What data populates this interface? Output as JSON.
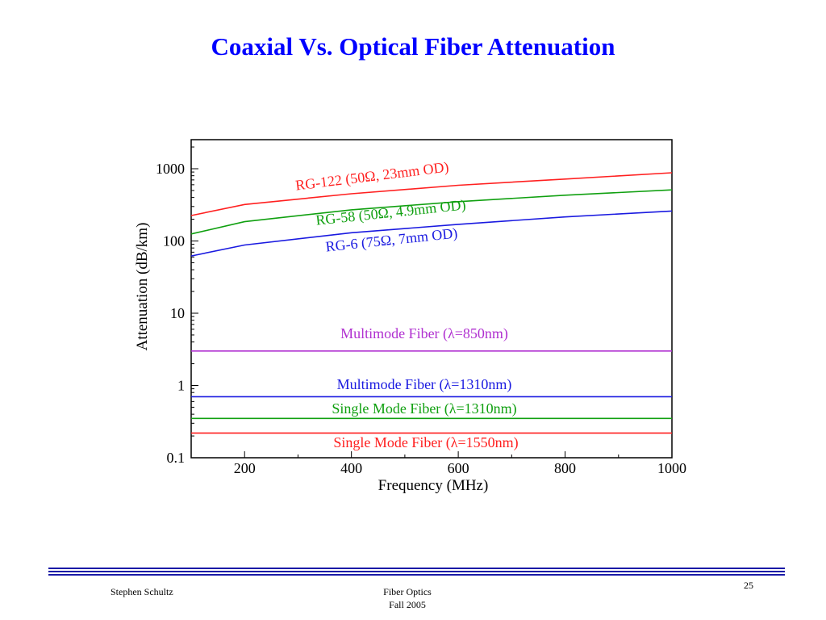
{
  "slide": {
    "title": "Coaxial Vs. Optical Fiber Attenuation",
    "author": "Stephen Schultz",
    "course": "Fiber Optics",
    "term": "Fall 2005",
    "page_number": "25"
  },
  "colors": {
    "title": "#0000ff",
    "rule": "#1a1aa6",
    "red": "#ff2020",
    "green": "#10a010",
    "blue": "#1a1ae0",
    "purple": "#b030d0"
  },
  "chart_data": {
    "type": "line",
    "xlabel": "Frequency (MHz)",
    "ylabel": "Attenuation (dB/km)",
    "xlim": [
      100,
      1000
    ],
    "ylim": [
      0.1,
      2000
    ],
    "yscale": "log",
    "x_ticks": [
      200,
      400,
      600,
      800,
      1000
    ],
    "x_tick_labels": [
      "200",
      "400",
      "600",
      "800",
      "1000"
    ],
    "y_ticks": [
      0.1,
      1,
      10,
      100,
      1000
    ],
    "y_tick_labels": [
      "0.1",
      "1",
      "10",
      "100",
      "1000"
    ],
    "grid": false,
    "legend": "inline labels",
    "series": [
      {
        "name": "RG-122 (50Ω, 23mm OD)",
        "color": "#ff2020",
        "x": [
          100,
          200,
          400,
          600,
          800,
          1000
        ],
        "y": [
          225,
          320,
          450,
          590,
          720,
          880
        ]
      },
      {
        "name": "RG-58 (50Ω, 4.9mm OD)",
        "color": "#10a010",
        "x": [
          100,
          200,
          400,
          600,
          800,
          1000
        ],
        "y": [
          125,
          185,
          270,
          350,
          430,
          510
        ]
      },
      {
        "name": "RG-6 (75Ω, 7mm OD)",
        "color": "#1a1ae0",
        "x": [
          100,
          200,
          400,
          600,
          800,
          1000
        ],
        "y": [
          62,
          88,
          130,
          170,
          215,
          260
        ]
      },
      {
        "name": "Multimode Fiber (λ=850nm)",
        "color": "#b030d0",
        "x": [
          100,
          1000
        ],
        "y": [
          3,
          3
        ]
      },
      {
        "name": "Multimode Fiber (λ=1310nm)",
        "color": "#1a1ae0",
        "x": [
          100,
          1000
        ],
        "y": [
          0.7,
          0.7
        ]
      },
      {
        "name": "Single Mode Fiber (λ=1310nm)",
        "color": "#10a010",
        "x": [
          100,
          1000
        ],
        "y": [
          0.35,
          0.35
        ]
      },
      {
        "name": "Single Mode Fiber (λ=1550nm)",
        "color": "#ff2020",
        "x": [
          100,
          1000
        ],
        "y": [
          0.22,
          0.22
        ]
      }
    ]
  }
}
